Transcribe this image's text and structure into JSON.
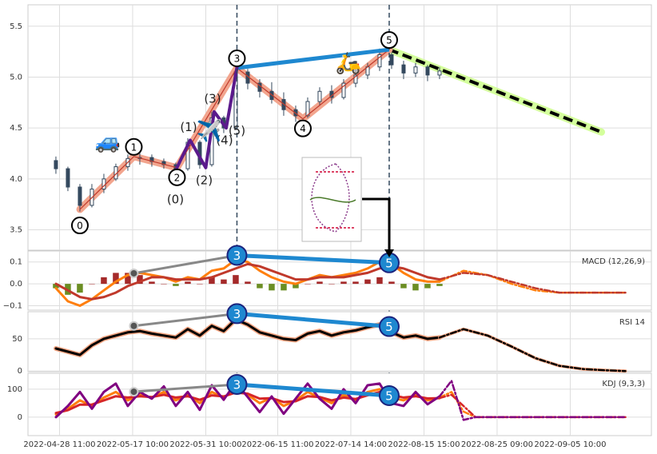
{
  "chart_data": [
    {
      "type": "candlestick",
      "x": [
        0,
        1,
        2,
        3,
        4,
        5,
        6,
        7,
        8,
        9,
        10,
        11,
        12,
        13,
        14,
        15,
        16,
        17,
        18,
        19,
        20,
        21,
        22,
        23,
        24,
        25,
        26,
        27,
        28,
        29,
        30,
        31,
        32
      ],
      "open": [
        4.18,
        4.1,
        3.92,
        3.74,
        3.9,
        4.0,
        4.12,
        4.2,
        4.21,
        4.17,
        4.14,
        4.1,
        4.36,
        4.14,
        4.6,
        4.5,
        5.05,
        4.94,
        4.86,
        4.78,
        4.68,
        4.62,
        4.76,
        4.86,
        4.8,
        4.94,
        5.02,
        5.1,
        5.22,
        5.12,
        5.04,
        5.1,
        5.02
      ],
      "high": [
        4.22,
        4.12,
        3.95,
        3.95,
        4.05,
        4.15,
        4.24,
        4.26,
        4.24,
        4.2,
        4.16,
        4.4,
        4.38,
        4.66,
        4.62,
        5.1,
        5.08,
        4.98,
        4.95,
        4.85,
        4.72,
        4.8,
        4.9,
        4.92,
        4.98,
        5.06,
        5.14,
        5.28,
        5.24,
        5.16,
        5.14,
        5.12,
        5.1
      ],
      "low": [
        4.05,
        3.88,
        3.68,
        3.72,
        3.86,
        3.98,
        4.08,
        4.14,
        4.12,
        4.1,
        4.05,
        4.08,
        4.1,
        4.12,
        4.45,
        4.48,
        4.88,
        4.8,
        4.74,
        4.62,
        4.56,
        4.6,
        4.72,
        4.74,
        4.78,
        4.9,
        4.98,
        5.06,
        5.08,
        4.98,
        5.0,
        4.96,
        4.98
      ],
      "close": [
        4.1,
        3.92,
        3.74,
        3.9,
        4.0,
        4.12,
        4.2,
        4.21,
        4.17,
        4.14,
        4.1,
        4.36,
        4.14,
        4.6,
        4.5,
        5.05,
        4.94,
        4.86,
        4.78,
        4.68,
        4.62,
        4.76,
        4.86,
        4.8,
        4.94,
        5.02,
        5.1,
        5.22,
        5.12,
        5.04,
        5.1,
        5.02,
        5.06
      ],
      "color": "#34495e",
      "xlim": [
        -2.33,
        49.67
      ],
      "ylim": [
        3.3,
        5.71
      ],
      "yticks": [
        3.5,
        {
          "value": 4,
          "label": "4.0"
        },
        4.5,
        {
          "value": 5,
          "label": "5.0"
        },
        5.5
      ],
      "grid": true,
      "wave": {
        "x": [
          2,
          6.5,
          10.1,
          15.1,
          20.6,
          27.8
        ],
        "y": [
          3.7,
          4.22,
          4.11,
          5.09,
          4.59,
          5.27
        ],
        "labels": [
          "0",
          "1",
          "2",
          "3",
          "4",
          "5"
        ],
        "color": "#f2a58e",
        "link_color": "#1e88d0"
      },
      "subwave": {
        "x": [
          10.1,
          11.2,
          12.5,
          13.2,
          14.2,
          15.1
        ],
        "y": [
          4.11,
          4.38,
          4.11,
          4.66,
          4.5,
          5.09
        ],
        "labels": [
          "(0)",
          "(1)",
          "(2)",
          "(3)",
          "(4)",
          "(5)"
        ],
        "color": "#5b1a8c"
      },
      "forecast": {
        "x": [
          27.8,
          45.5
        ],
        "y": [
          5.27,
          4.46
        ],
        "color": "#000000",
        "band_color": "#d4ff9c"
      },
      "vlines": [
        15.1,
        27.8
      ],
      "icons": [
        "🚙",
        "✈️",
        "🛵"
      ]
    },
    {
      "type": "macd",
      "label": "MACD (12,26,9)",
      "x": [
        0,
        1,
        2,
        3,
        4,
        5,
        6,
        7,
        8,
        9,
        10,
        11,
        12,
        13,
        14,
        15,
        16,
        17,
        18,
        19,
        20,
        21,
        22,
        23,
        24,
        25,
        26,
        27,
        28,
        29,
        30,
        31,
        32
      ],
      "series": [
        {
          "color": "#ff7f0e",
          "values": [
            -0.02,
            -0.08,
            -0.1,
            -0.07,
            -0.03,
            0.01,
            0.04,
            0.05,
            0.04,
            0.03,
            0.01,
            0.03,
            0.02,
            0.06,
            0.07,
            0.11,
            0.1,
            0.06,
            0.03,
            0.01,
            0.0,
            0.02,
            0.04,
            0.03,
            0.04,
            0.05,
            0.07,
            0.1,
            0.09,
            0.05,
            0.02,
            0.01,
            0.01
          ]
        },
        {
          "color": "#c0392b",
          "values": [
            0.0,
            -0.03,
            -0.06,
            -0.07,
            -0.06,
            -0.04,
            -0.01,
            0.01,
            0.03,
            0.03,
            0.02,
            0.02,
            0.02,
            0.03,
            0.05,
            0.07,
            0.09,
            0.08,
            0.06,
            0.04,
            0.02,
            0.02,
            0.03,
            0.03,
            0.03,
            0.04,
            0.05,
            0.07,
            0.08,
            0.07,
            0.05,
            0.03,
            0.02
          ]
        }
      ],
      "histogram": [
        -0.02,
        -0.05,
        -0.04,
        0.0,
        0.03,
        0.05,
        0.05,
        0.04,
        0.01,
        0.0,
        -0.01,
        0.01,
        0.0,
        0.03,
        0.02,
        0.04,
        0.01,
        -0.02,
        -0.03,
        -0.03,
        -0.02,
        0.0,
        0.01,
        0.0,
        0.01,
        0.01,
        0.02,
        0.03,
        0.01,
        -0.02,
        -0.03,
        -0.02,
        -0.01
      ],
      "up_color": "#a52a2a",
      "down_color": "#6b8e23",
      "forecast": {
        "x": [
          32,
          34,
          36,
          38,
          40,
          42,
          44,
          46,
          47.5
        ],
        "series": [
          {
            "color": "#ff7f0e",
            "values": [
              0.01,
              0.06,
              0.04,
              0.0,
              -0.03,
              -0.04,
              -0.04,
              -0.04,
              -0.04
            ]
          },
          {
            "color": "#c0392b",
            "values": [
              0.02,
              0.05,
              0.04,
              0.01,
              -0.02,
              -0.04,
              -0.04,
              -0.04,
              -0.04
            ]
          }
        ]
      },
      "divergence": {
        "x": [
          6.5,
          15.1,
          27.8
        ],
        "y": [
          0.048,
          0.13,
          0.096
        ],
        "labels": [
          null,
          "3",
          "5"
        ]
      },
      "xlim": [
        -2.33,
        49.67
      ],
      "ylim": [
        -0.12,
        0.15
      ],
      "yticks": [
        0.1,
        {
          "value": 0,
          "label": "0.0"
        },
        {
          "value": -0.1,
          "label": "−0.1"
        }
      ],
      "grid": true
    },
    {
      "type": "line",
      "label": "RSI 14",
      "x": [
        0,
        1,
        2,
        3,
        4,
        5,
        6,
        7,
        8,
        9,
        10,
        11,
        12,
        13,
        14,
        15,
        16,
        17,
        18,
        19,
        20,
        21,
        22,
        23,
        24,
        25,
        26,
        27,
        28,
        29,
        30,
        31,
        32
      ],
      "series": [
        {
          "color": "#000000",
          "outline": "#f4a582",
          "values": [
            35,
            30,
            25,
            40,
            50,
            55,
            60,
            62,
            58,
            55,
            52,
            65,
            55,
            70,
            62,
            80,
            72,
            60,
            55,
            50,
            48,
            58,
            62,
            55,
            60,
            63,
            68,
            72,
            60,
            52,
            55,
            50,
            52
          ]
        }
      ],
      "forecast": {
        "x": [
          32,
          34,
          36,
          38,
          40,
          42,
          44,
          46,
          47.5
        ],
        "series": [
          {
            "color": "#000000",
            "outline": "#f4a582",
            "values": [
              52,
              65,
              55,
              38,
              20,
              8,
              3,
              1,
              0
            ]
          }
        ]
      },
      "divergence": {
        "x": [
          6.5,
          15.1,
          27.8
        ],
        "y": [
          70,
          89,
          69
        ],
        "labels": [
          null,
          "3",
          "5"
        ]
      },
      "xlim": [
        -2.33,
        49.67
      ],
      "ylim": [
        -1,
        92
      ],
      "yticks": [
        0,
        50
      ],
      "grid": true
    },
    {
      "type": "line",
      "label": "KDJ (9,3,3)",
      "x": [
        0,
        1,
        2,
        3,
        4,
        5,
        6,
        7,
        8,
        9,
        10,
        11,
        12,
        13,
        14,
        15,
        16,
        17,
        18,
        19,
        20,
        21,
        22,
        23,
        24,
        25,
        26,
        27,
        28,
        29,
        30,
        31,
        32
      ],
      "series": [
        {
          "color": "#ff7f0e",
          "values": [
            10,
            30,
            60,
            40,
            70,
            90,
            60,
            80,
            70,
            90,
            60,
            80,
            50,
            90,
            70,
            100,
            80,
            50,
            70,
            40,
            60,
            90,
            70,
            50,
            80,
            60,
            90,
            100,
            70,
            60,
            80,
            60,
            70
          ]
        },
        {
          "color": "#d62728",
          "values": [
            15,
            25,
            45,
            45,
            60,
            75,
            70,
            75,
            72,
            80,
            70,
            75,
            62,
            78,
            74,
            88,
            84,
            66,
            68,
            54,
            57,
            75,
            72,
            60,
            70,
            65,
            78,
            90,
            80,
            70,
            75,
            67,
            68
          ]
        },
        {
          "color": "#800080",
          "values": [
            0,
            40,
            90,
            30,
            90,
            120,
            40,
            90,
            66,
            110,
            40,
            90,
            26,
            114,
            62,
            124,
            72,
            18,
            74,
            12,
            66,
            120,
            66,
            30,
            100,
            50,
            114,
            120,
            50,
            40,
            90,
            46,
            74
          ]
        }
      ],
      "forecast": {
        "x": [
          32,
          33,
          34,
          35,
          36,
          40,
          44,
          47.5
        ],
        "series": [
          {
            "color": "#ff7f0e",
            "values": [
              70,
              90,
              20,
              0,
              0,
              0,
              0,
              0
            ]
          },
          {
            "color": "#d62728",
            "values": [
              68,
              80,
              40,
              0,
              0,
              0,
              0,
              0
            ]
          },
          {
            "color": "#800080",
            "values": [
              74,
              130,
              -10,
              0,
              0,
              0,
              0,
              0
            ]
          }
        ]
      },
      "divergence": {
        "x": [
          6.5,
          15.1,
          27.8
        ],
        "y": [
          91,
          117,
          77
        ],
        "labels": [
          null,
          "3",
          "5"
        ]
      },
      "xlim": [
        -2.33,
        49.67
      ],
      "ylim": [
        -66,
        157
      ],
      "yticks": [
        0,
        100
      ],
      "grid": true,
      "xticks": [
        {
          "value": 0.3,
          "label": "2022-04-28 11:00"
        },
        {
          "value": 6.4,
          "label": "2022-05-17 10:00"
        },
        {
          "value": 12.5,
          "label": "2022-05-31 10:00"
        },
        {
          "value": 18.5,
          "label": "2022-06-15 11:00"
        },
        {
          "value": 24.6,
          "label": "2022-07-14 14:00"
        },
        {
          "value": 30.7,
          "label": "2022-08-15 15:00"
        },
        {
          "value": 36.8,
          "label": "2022-08-25 09:00"
        },
        {
          "value": 42.9,
          "label": "2022-09-05 10:00"
        }
      ]
    }
  ]
}
